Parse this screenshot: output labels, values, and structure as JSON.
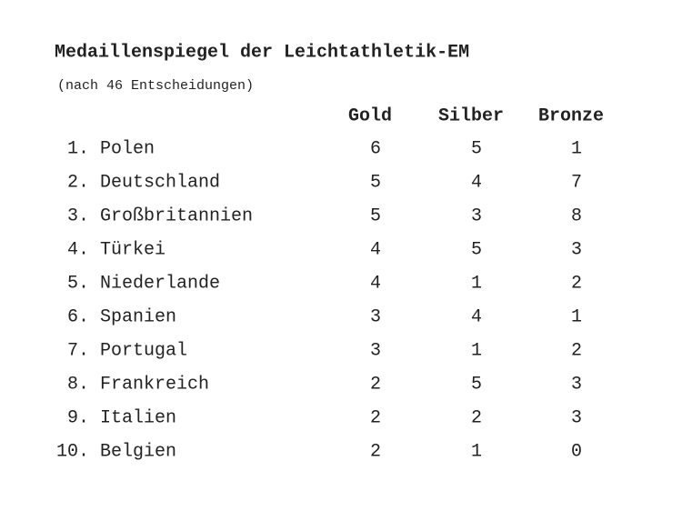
{
  "header": {
    "title": "Medaillenspiegel der Leichtathletik-EM",
    "subtitle": "(nach 46 Entscheidungen)"
  },
  "table": {
    "columns": [
      "Gold",
      "Silber",
      "Bronze"
    ],
    "rows": [
      [
        "1.",
        "Polen",
        6,
        5,
        1
      ],
      [
        "2.",
        "Deutschland",
        5,
        4,
        7
      ],
      [
        "3.",
        "Großbritannien",
        5,
        3,
        8
      ],
      [
        "4.",
        "Türkei",
        4,
        5,
        3
      ],
      [
        "5.",
        "Niederlande",
        4,
        1,
        2
      ],
      [
        "6.",
        "Spanien",
        3,
        4,
        1
      ],
      [
        "7.",
        "Portugal",
        3,
        1,
        2
      ],
      [
        "8.",
        "Frankreich",
        2,
        5,
        3
      ],
      [
        "9.",
        "Italien",
        2,
        2,
        3
      ],
      [
        "10.",
        "Belgien",
        2,
        1,
        0
      ]
    ]
  }
}
